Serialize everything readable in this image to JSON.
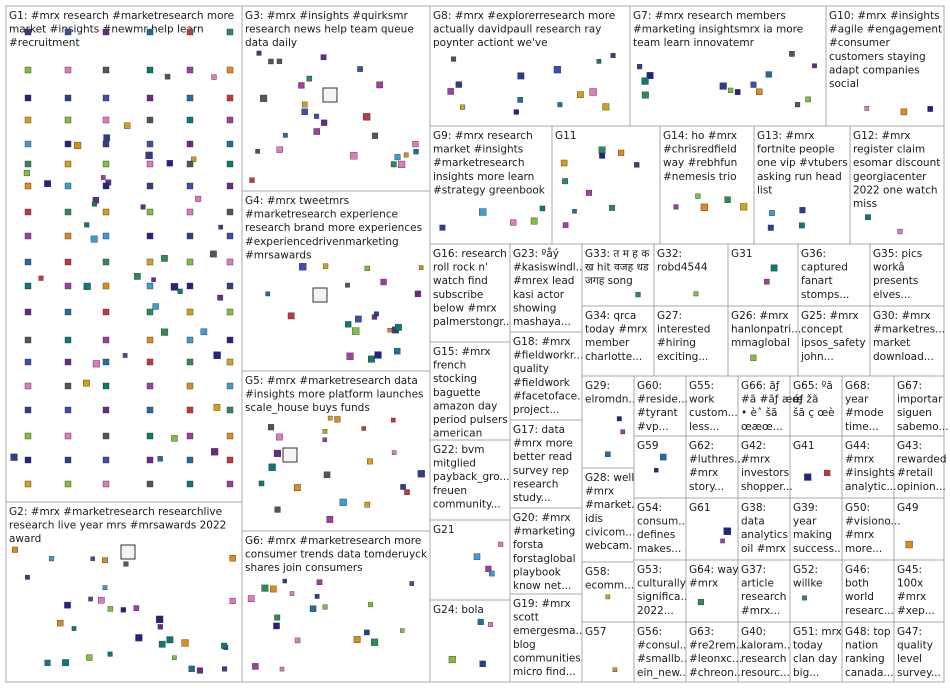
{
  "groups": [
    {
      "id": "G1",
      "lines": [
        "G1: #mrx research #marketresearch more",
        "market #insights #newmr help learn",
        "#recruitment"
      ]
    },
    {
      "id": "G2",
      "lines": [
        "G2: #mrx #marketresearch researchlive",
        "research live year mrs #mrsawards 2022",
        "award"
      ]
    },
    {
      "id": "G3",
      "lines": [
        "G3: #mrx #insights #quirksmr",
        "research news help team queue",
        "data daily"
      ]
    },
    {
      "id": "G4",
      "lines": [
        "G4: #mrx tweetmrs",
        "#marketresearch experience",
        "research brand more experiences",
        "#experiencedrivenmarketing",
        "#mrsawards"
      ]
    },
    {
      "id": "G5",
      "lines": [
        "G5: #mrx #marketresearch data",
        "#insights more platform launches",
        "scale_house buys funds"
      ]
    },
    {
      "id": "G6",
      "lines": [
        "G6: #mrx #marketresearch more",
        "consumer trends data tomderuyck",
        "shares join consumers"
      ]
    },
    {
      "id": "G7",
      "lines": [
        "G7: #mrx research members",
        "#marketing insightsmrx ia more",
        "team learn innovatemr"
      ]
    },
    {
      "id": "G8",
      "lines": [
        "G8: #mrx #explorerresearch more",
        "actually davidpaull research ray",
        "poynter actiont we've"
      ]
    },
    {
      "id": "G9",
      "lines": [
        "G9: #mrx research",
        "market #insights",
        "#marketresearch",
        "insights more learn",
        "#strategy greenbook"
      ]
    },
    {
      "id": "G10",
      "lines": [
        "G10: #mrx #insights",
        "#agile #engagement",
        "#consumer",
        "customers staying",
        "adapt companies",
        "social"
      ]
    },
    {
      "id": "G11",
      "lines": [
        "G11"
      ]
    },
    {
      "id": "G12",
      "lines": [
        "G12: #mrx",
        "register claim",
        "esomar discount",
        "georgiacenter",
        "2022 one watch",
        "miss"
      ]
    },
    {
      "id": "G13",
      "lines": [
        "G13: #mrx",
        "fortnite people",
        "one vip #vtubers",
        "asking run head",
        "list"
      ]
    },
    {
      "id": "G14",
      "lines": [
        "G14: ho #mrx",
        "#chrisredfield",
        "way #rebhfun",
        "#nemesis trio"
      ]
    },
    {
      "id": "G15",
      "lines": [
        "G15: #mrx",
        "french",
        "stocking",
        "baguette",
        "amazon day",
        "period pulsers",
        "american"
      ]
    },
    {
      "id": "G16",
      "lines": [
        "G16: research",
        "roll rock n'",
        "watch find",
        "subscribe",
        "below #mrx",
        "palmerstongr..."
      ]
    },
    {
      "id": "G17",
      "lines": [
        "G17: data",
        "#mrx more",
        "better read",
        "survey rep",
        "research",
        "study..."
      ]
    },
    {
      "id": "G18",
      "lines": [
        "G18: #mrx",
        "#fieldworkr...",
        "quality",
        "#fieldwork",
        "#facetoface...",
        "project..."
      ]
    },
    {
      "id": "G19",
      "lines": [
        "G19: #mrx",
        "scott",
        "emergesma...",
        "blog",
        "communities",
        "micro find..."
      ]
    },
    {
      "id": "G20",
      "lines": [
        "G20: #mrx",
        "#marketing",
        "forsta",
        "forstaglobal",
        "playbook",
        "know net..."
      ]
    },
    {
      "id": "G21",
      "lines": [
        "G21"
      ]
    },
    {
      "id": "G22",
      "lines": [
        "G22: bvm",
        "mitglied",
        "payback_gro...",
        "freuen",
        "community..."
      ]
    },
    {
      "id": "G23",
      "lines": [
        "G23: ºåý",
        "#kasiswindl...",
        "#mrex lead",
        "kasi actor",
        "showing",
        "mashaya..."
      ]
    },
    {
      "id": "G24",
      "lines": [
        "G24: bola"
      ]
    },
    {
      "id": "G25",
      "lines": [
        "G25: #mrx",
        "concept",
        "ipsos_safety",
        "john..."
      ]
    },
    {
      "id": "G26",
      "lines": [
        "G26: #mrx",
        "hanlonpatri...",
        "mmaglobal"
      ]
    },
    {
      "id": "G27",
      "lines": [
        "G27:",
        "interested",
        "#hiring",
        "exciting..."
      ]
    },
    {
      "id": "G28",
      "lines": [
        "G28: well",
        "#mrx",
        "#market...",
        "idis",
        "civicom...",
        "webcam..."
      ]
    },
    {
      "id": "G29",
      "lines": [
        "G29:",
        "elromdn..."
      ]
    },
    {
      "id": "G30",
      "lines": [
        "G30: #mrx",
        "#marketres...",
        "market",
        "download..."
      ]
    },
    {
      "id": "G31",
      "lines": [
        "G31"
      ]
    },
    {
      "id": "G32",
      "lines": [
        "G32:",
        "robd4544"
      ]
    },
    {
      "id": "G33",
      "lines": [
        "G33: त म ह क",
        "ख hit वजह धड",
        "जगह song"
      ]
    },
    {
      "id": "G34",
      "lines": [
        "G34: qrca",
        "today #mrx",
        "member",
        "charlotte..."
      ]
    },
    {
      "id": "G35",
      "lines": [
        "G35: pics",
        "workâ",
        "presents",
        "elves..."
      ]
    },
    {
      "id": "G36",
      "lines": [
        "G36:",
        "captured",
        "fanart",
        "stomps..."
      ]
    },
    {
      "id": "G37",
      "lines": [
        "G37:",
        "article",
        "research",
        "#mrx..."
      ]
    },
    {
      "id": "G38",
      "lines": [
        "G38:",
        "data",
        "analytics",
        "oil #mrx"
      ]
    },
    {
      "id": "G39",
      "lines": [
        "G39:",
        "year",
        "making",
        "success..."
      ]
    },
    {
      "id": "G40",
      "lines": [
        "G40:",
        "kaloram...",
        "research",
        "resourc..."
      ]
    },
    {
      "id": "G41",
      "lines": [
        "G41"
      ]
    },
    {
      "id": "G42",
      "lines": [
        "G42:",
        "#mrx",
        "investors",
        "shopper..."
      ]
    },
    {
      "id": "G43",
      "lines": [
        "G43:",
        "rewarded",
        "#retail",
        "opinion..."
      ]
    },
    {
      "id": "G44",
      "lines": [
        "G44:",
        "#mrx",
        "#insights",
        "analytic..."
      ]
    },
    {
      "id": "G45",
      "lines": [
        "G45:",
        "100x",
        "#mrx",
        "#xep..."
      ]
    },
    {
      "id": "G46",
      "lines": [
        "G46:",
        "both",
        "world",
        "researc..."
      ]
    },
    {
      "id": "G47",
      "lines": [
        "G47:",
        "quality",
        "level",
        "survey..."
      ]
    },
    {
      "id": "G48",
      "lines": [
        "G48: top",
        "nation",
        "ranking",
        "canada..."
      ]
    },
    {
      "id": "G49",
      "lines": [
        "G49"
      ]
    },
    {
      "id": "G50",
      "lines": [
        "G50:",
        "#visiono...",
        "#mrx",
        "more..."
      ]
    },
    {
      "id": "G51",
      "lines": [
        "G51: mrx",
        "today",
        "clan day",
        "big..."
      ]
    },
    {
      "id": "G52",
      "lines": [
        "G52:",
        "willke"
      ]
    },
    {
      "id": "G53",
      "lines": [
        "G53:",
        "culturally",
        "significa...",
        "2022..."
      ]
    },
    {
      "id": "G54",
      "lines": [
        "G54:",
        "consum...",
        "defines",
        "makes..."
      ]
    },
    {
      "id": "G55",
      "lines": [
        "G55:",
        "work",
        "custom...",
        "less..."
      ]
    },
    {
      "id": "G56",
      "lines": [
        "G56:",
        "#consul...",
        "#smallb...",
        "ein_new..."
      ]
    },
    {
      "id": "G57",
      "lines": [
        "G57"
      ]
    },
    {
      "id": "G58",
      "lines": [
        "G58:",
        "ecomm..."
      ]
    },
    {
      "id": "G59",
      "lines": [
        "G59"
      ]
    },
    {
      "id": "G60",
      "lines": [
        "G60:",
        "#reside...",
        "#tyrant",
        "#vp..."
      ]
    },
    {
      "id": "G61",
      "lines": [
        "G61"
      ]
    },
    {
      "id": "G62",
      "lines": [
        "G62:",
        "#luthres...",
        "#mrx",
        "story..."
      ]
    },
    {
      "id": "G63",
      "lines": [
        "G63:",
        "#re2rem...",
        "#leonxc...",
        "#chreon..."
      ]
    },
    {
      "id": "G64",
      "lines": [
        "G64: way",
        "#mrx"
      ]
    },
    {
      "id": "G65",
      "lines": [
        "G65: ºã",
        "éƒ žã",
        "šã ç œè"
      ]
    },
    {
      "id": "G66",
      "lines": [
        "G66: ãƒ",
        "#ã #ãƒ æœ",
        "• èˆ šã",
        "œæœ..."
      ]
    },
    {
      "id": "G67",
      "lines": [
        "G67:",
        "importar",
        "siguen",
        "sabemo..."
      ]
    },
    {
      "id": "G68",
      "lines": [
        "G68:",
        "year",
        "#mode",
        "time..."
      ]
    }
  ]
}
